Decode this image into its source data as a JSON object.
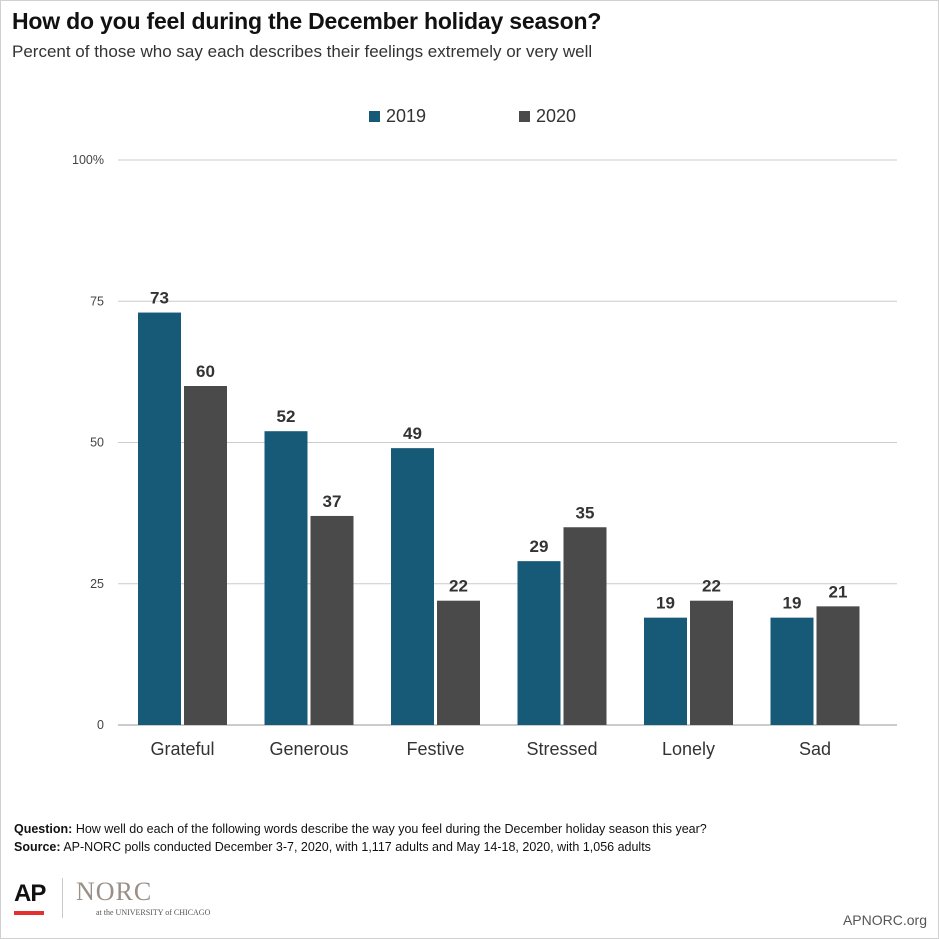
{
  "header": {
    "title": "How do you feel during the December holiday season?",
    "subtitle": "Percent of those who say each describes their feelings extremely or very well"
  },
  "colors": {
    "series_2019": "#175a78",
    "series_2020": "#4a4a4a",
    "grid": "#cccccc",
    "label": "#333333"
  },
  "chart_data": {
    "type": "bar",
    "categories": [
      "Grateful",
      "Generous",
      "Festive",
      "Stressed",
      "Lonely",
      "Sad"
    ],
    "series": [
      {
        "name": "2019",
        "values": [
          73,
          52,
          49,
          29,
          19,
          19
        ]
      },
      {
        "name": "2020",
        "values": [
          60,
          37,
          22,
          35,
          22,
          21
        ]
      }
    ],
    "yticks": [
      "0",
      "25",
      "50",
      "75",
      "100%"
    ],
    "ylim": [
      0,
      100
    ],
    "legend_position": "top-center",
    "grid": true
  },
  "footer": {
    "question_label": "Question:",
    "question_text": " How well do each of the following words describe the way you feel during the December holiday season this year?",
    "source_label": "Source:",
    "source_text": " AP-NORC polls conducted December 3-7, 2020, with 1,117 adults and May 14-18, 2020, with 1,056 adults",
    "logo_ap": "AP",
    "logo_norc": "NORC",
    "logo_uchicago": "at the UNIVERSITY of CHICAGO",
    "site": "APNORC.org"
  }
}
